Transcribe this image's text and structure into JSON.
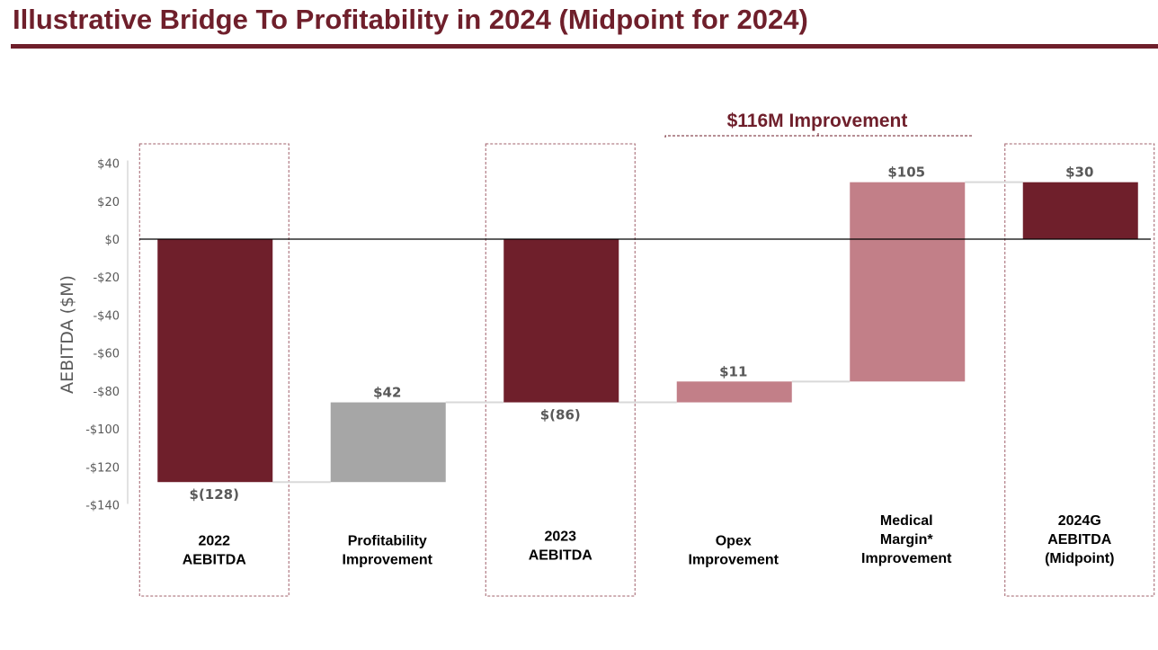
{
  "title": "Illustrative Bridge To Profitability in 2024 (Midpoint for 2024)",
  "chart_data": {
    "type": "waterfall",
    "ylabel": "AEBITDA ($M)",
    "ylim": [
      -140,
      40
    ],
    "yticks": [
      40,
      20,
      0,
      -20,
      -40,
      -60,
      -80,
      -100,
      -120,
      -140
    ],
    "ytick_labels": [
      "$40",
      "$20",
      "$0",
      "-$20",
      "-$40",
      "-$60",
      "-$80",
      "-$100",
      "-$120",
      "-$140"
    ],
    "grid": false,
    "bars": [
      {
        "category": [
          "2022",
          "AEBITDA"
        ],
        "kind": "total",
        "value": -128,
        "label": "$(128)",
        "color": "#6f1f2b",
        "highlighted": true
      },
      {
        "category": [
          "Profitability",
          "Improvement"
        ],
        "kind": "delta",
        "value": 42,
        "label": "$42",
        "color": "#a6a6a6",
        "highlighted": false
      },
      {
        "category": [
          "2023",
          "AEBITDA"
        ],
        "kind": "total",
        "value": -86,
        "label": "$(86)",
        "color": "#6f1f2b",
        "highlighted": true
      },
      {
        "category": [
          "Opex",
          "Improvement"
        ],
        "kind": "delta",
        "value": 11,
        "label": "$11",
        "color": "#c27f88",
        "highlighted": false
      },
      {
        "category": [
          "Medical",
          "Margin*",
          "Improvement"
        ],
        "kind": "delta",
        "value": 105,
        "label": "$105",
        "color": "#c27f88",
        "highlighted": false
      },
      {
        "category": [
          "2024G",
          "AEBITDA",
          "(Midpoint)"
        ],
        "kind": "total",
        "value": 30,
        "label": "$30",
        "color": "#6f1f2b",
        "highlighted": true
      }
    ],
    "annotation": {
      "text": "$116M Improvement",
      "spans": [
        "Opex Improvement",
        "Medical Margin* Improvement"
      ]
    }
  }
}
